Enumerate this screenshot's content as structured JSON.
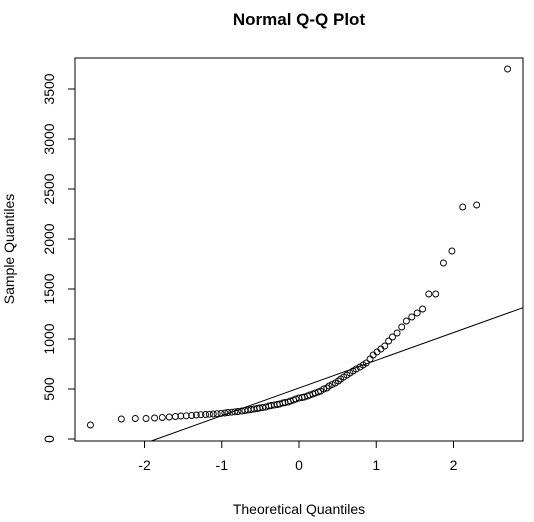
{
  "chart_data": {
    "type": "scatter",
    "title": "Normal Q-Q Plot",
    "xlabel": "Theoretical Quantiles",
    "ylabel": "Sample Quantiles",
    "xlim": [
      -2.9,
      2.9
    ],
    "ylim": [
      -20,
      3810
    ],
    "x_ticks": [
      -2,
      -1,
      0,
      1,
      2
    ],
    "x_tick_labels": [
      "-2",
      "-1",
      "0",
      "1",
      "2"
    ],
    "y_ticks": [
      0,
      500,
      1000,
      1500,
      2000,
      2500,
      3000,
      3500
    ],
    "y_tick_labels": [
      "0",
      "500",
      "1000",
      "1500",
      "2000",
      "2500",
      "3000",
      "3500"
    ],
    "grid": false,
    "marker": "open-circle",
    "reference_line": {
      "slope": 277,
      "intercept": 510
    },
    "points": [
      [
        -2.7,
        140
      ],
      [
        -2.3,
        200
      ],
      [
        -2.12,
        205
      ],
      [
        -1.98,
        205
      ],
      [
        -1.87,
        210
      ],
      [
        -1.77,
        215
      ],
      [
        -1.68,
        220
      ],
      [
        -1.6,
        225
      ],
      [
        -1.53,
        230
      ],
      [
        -1.46,
        232
      ],
      [
        -1.39,
        235
      ],
      [
        -1.33,
        240
      ],
      [
        -1.27,
        243
      ],
      [
        -1.21,
        245
      ],
      [
        -1.16,
        248
      ],
      [
        -1.11,
        250
      ],
      [
        -1.06,
        253
      ],
      [
        -1.01,
        256
      ],
      [
        -0.96,
        260
      ],
      [
        -0.92,
        265
      ],
      [
        -0.87,
        268
      ],
      [
        -0.83,
        272
      ],
      [
        -0.79,
        275
      ],
      [
        -0.74,
        280
      ],
      [
        -0.7,
        285
      ],
      [
        -0.66,
        290
      ],
      [
        -0.62,
        295
      ],
      [
        -0.58,
        300
      ],
      [
        -0.54,
        305
      ],
      [
        -0.51,
        310
      ],
      [
        -0.47,
        315
      ],
      [
        -0.43,
        320
      ],
      [
        -0.39,
        330
      ],
      [
        -0.36,
        335
      ],
      [
        -0.32,
        340
      ],
      [
        -0.28,
        345
      ],
      [
        -0.25,
        350
      ],
      [
        -0.21,
        360
      ],
      [
        -0.18,
        365
      ],
      [
        -0.14,
        370
      ],
      [
        -0.11,
        380
      ],
      [
        -0.07,
        390
      ],
      [
        -0.04,
        400
      ],
      [
        0.0,
        410
      ],
      [
        0.04,
        415
      ],
      [
        0.07,
        420
      ],
      [
        0.11,
        430
      ],
      [
        0.14,
        440
      ],
      [
        0.18,
        450
      ],
      [
        0.21,
        460
      ],
      [
        0.25,
        470
      ],
      [
        0.28,
        480
      ],
      [
        0.32,
        500
      ],
      [
        0.36,
        510
      ],
      [
        0.39,
        530
      ],
      [
        0.43,
        545
      ],
      [
        0.47,
        560
      ],
      [
        0.51,
        580
      ],
      [
        0.54,
        600
      ],
      [
        0.58,
        620
      ],
      [
        0.62,
        640
      ],
      [
        0.66,
        660
      ],
      [
        0.7,
        680
      ],
      [
        0.74,
        700
      ],
      [
        0.79,
        720
      ],
      [
        0.83,
        740
      ],
      [
        0.87,
        760
      ],
      [
        0.92,
        800
      ],
      [
        0.96,
        840
      ],
      [
        1.01,
        870
      ],
      [
        1.06,
        900
      ],
      [
        1.11,
        930
      ],
      [
        1.16,
        980
      ],
      [
        1.21,
        1020
      ],
      [
        1.27,
        1060
      ],
      [
        1.33,
        1120
      ],
      [
        1.39,
        1180
      ],
      [
        1.46,
        1220
      ],
      [
        1.53,
        1260
      ],
      [
        1.6,
        1300
      ],
      [
        1.68,
        1450
      ],
      [
        1.77,
        1450
      ],
      [
        1.87,
        1760
      ],
      [
        1.98,
        1880
      ],
      [
        2.12,
        2320
      ],
      [
        2.3,
        2340
      ],
      [
        2.7,
        3700
      ]
    ]
  }
}
